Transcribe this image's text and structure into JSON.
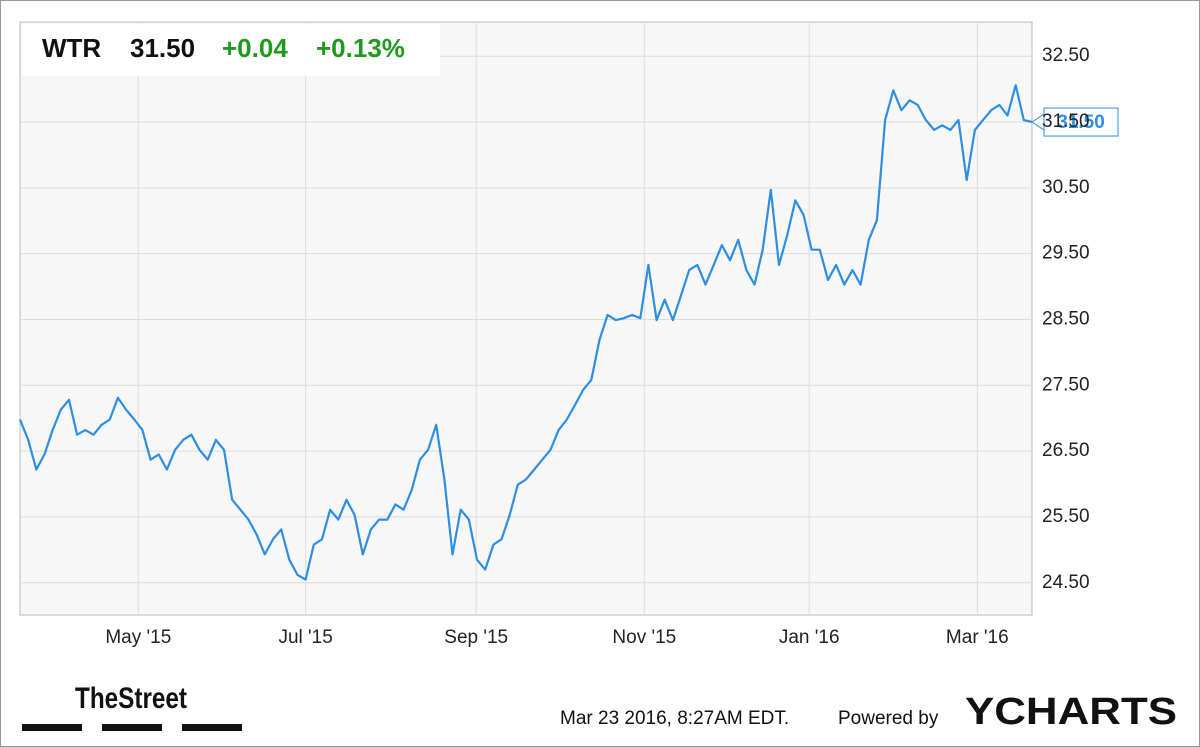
{
  "header": {
    "symbol": "WTR",
    "price": "31.50",
    "change": "+0.04",
    "change_pct": "+0.13%"
  },
  "chart_data": {
    "type": "line",
    "series": [
      {
        "name": "WTR",
        "color": "#2e8ee4",
        "values": [
          26.98,
          26.67,
          26.22,
          26.45,
          26.82,
          27.13,
          27.28,
          26.75,
          26.82,
          26.75,
          26.9,
          26.98,
          27.31,
          27.13,
          26.98,
          26.82,
          26.37,
          26.45,
          26.22,
          26.52,
          26.67,
          26.75,
          26.52,
          26.37,
          26.67,
          26.52,
          25.76,
          25.61,
          25.46,
          25.23,
          24.93,
          25.16,
          25.31,
          24.85,
          24.62,
          24.55,
          25.08,
          25.16,
          25.61,
          25.46,
          25.76,
          25.53,
          24.93,
          25.31,
          25.46,
          25.46,
          25.69,
          25.61,
          25.91,
          26.37,
          26.52,
          26.9,
          26.07,
          24.93,
          25.61,
          25.46,
          24.85,
          24.7,
          25.08,
          25.16,
          25.53,
          25.99,
          26.07,
          26.22,
          26.37,
          26.52,
          26.82,
          26.98,
          27.2,
          27.43,
          27.58,
          28.19,
          28.57,
          28.49,
          28.52,
          28.57,
          28.52,
          29.33,
          28.49,
          28.8,
          28.49,
          28.87,
          29.25,
          29.33,
          29.03,
          29.33,
          29.63,
          29.4,
          29.71,
          29.25,
          29.03,
          29.56,
          30.47,
          29.33,
          29.78,
          30.31,
          30.09,
          29.56,
          29.56,
          29.1,
          29.33,
          29.03,
          29.25,
          29.03,
          29.71,
          30.01,
          31.53,
          31.98,
          31.68,
          31.83,
          31.76,
          31.53,
          31.38,
          31.45,
          31.38,
          31.53,
          30.62,
          31.38,
          31.53,
          31.68,
          31.76,
          31.6,
          32.06,
          31.53,
          31.5
        ]
      }
    ],
    "xlim": [
      0,
      124
    ],
    "xticks": [
      {
        "value": 14.5,
        "label": "May '15"
      },
      {
        "value": 35,
        "label": "Jul '15"
      },
      {
        "value": 55.9,
        "label": "Sep '15"
      },
      {
        "value": 76.5,
        "label": "Nov '15"
      },
      {
        "value": 96.7,
        "label": "Jan '16"
      },
      {
        "value": 117.3,
        "label": "Mar '16"
      }
    ],
    "ylim": [
      24.01,
      33.02
    ],
    "yticks": [
      {
        "value": 24.5,
        "label": "24.50"
      },
      {
        "value": 25.5,
        "label": "25.50"
      },
      {
        "value": 26.5,
        "label": "26.50"
      },
      {
        "value": 27.5,
        "label": "27.50"
      },
      {
        "value": 28.5,
        "label": "28.50"
      },
      {
        "value": 29.5,
        "label": "29.50"
      },
      {
        "value": 30.5,
        "label": "30.50"
      },
      {
        "value": 31.5,
        "label": "31.50"
      },
      {
        "value": 32.5,
        "label": "32.50"
      }
    ],
    "grid": true,
    "last_price": {
      "value": 31.5,
      "label": "31.50"
    }
  },
  "footer": {
    "brand": "TheStreet",
    "timestamp": "Mar 23 2016, 8:27AM EDT.",
    "powered": "Powered by",
    "provider": "YCHARTS"
  }
}
